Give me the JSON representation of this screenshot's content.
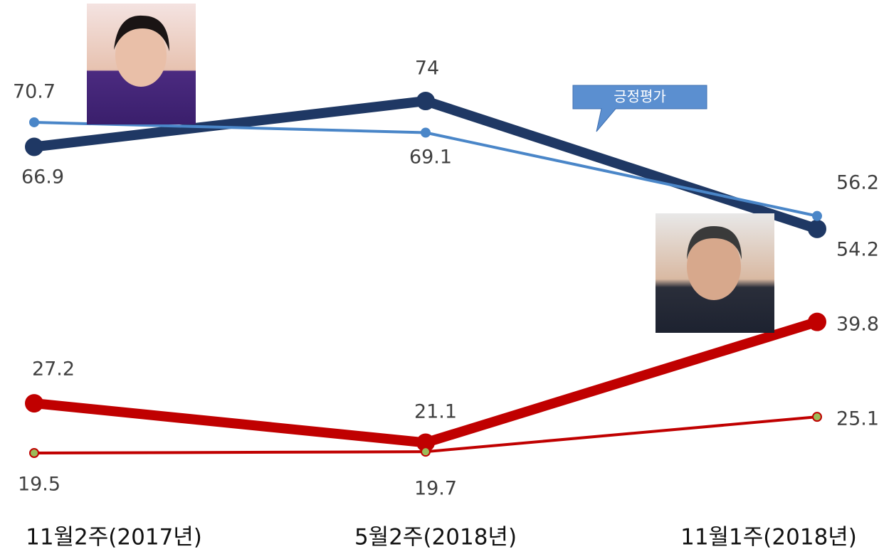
{
  "chart_data": {
    "type": "line",
    "categories": [
      "11월2주(2017년)",
      "5월2주(2018년)",
      "11월1주(2018년)"
    ],
    "annotation": "긍정평가",
    "series": [
      {
        "color": "#1f3864",
        "values": [
          66.9,
          74,
          54.2
        ]
      },
      {
        "color": "#4a86c8",
        "values": [
          70.7,
          69.1,
          56.2
        ]
      },
      {
        "color": "#c00000",
        "values": [
          27.2,
          21.1,
          39.8
        ]
      },
      {
        "color": "#c00000",
        "marker_color": "#9bbb59",
        "values": [
          19.5,
          19.7,
          25.1
        ]
      }
    ]
  }
}
